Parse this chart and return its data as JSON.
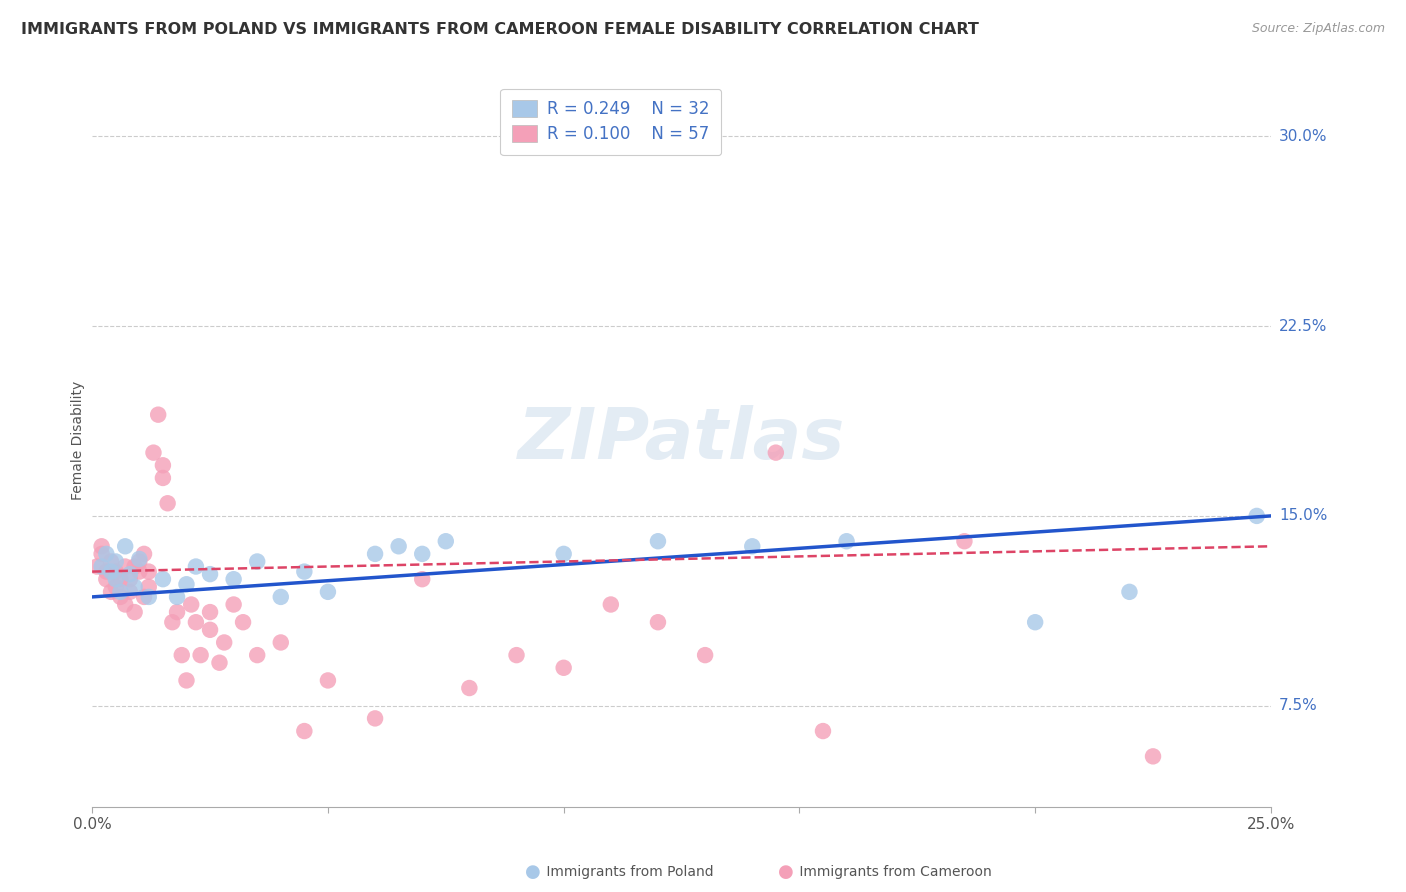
{
  "title": "IMMIGRANTS FROM POLAND VS IMMIGRANTS FROM CAMEROON FEMALE DISABILITY CORRELATION CHART",
  "source": "Source: ZipAtlas.com",
  "ylabel": "Female Disability",
  "xmin": 0.0,
  "xmax": 0.25,
  "ymin": 0.035,
  "ymax": 0.325,
  "poland_R": 0.249,
  "poland_N": 32,
  "cameroon_R": 0.1,
  "cameroon_N": 57,
  "poland_color": "#a8c8e8",
  "cameroon_color": "#f4a0b8",
  "poland_line_color": "#2255cc",
  "cameroon_line_color": "#dd4466",
  "background_color": "#ffffff",
  "grid_color": "#cccccc",
  "watermark": "ZIPatlas",
  "poland_scatter_x": [
    0.002,
    0.003,
    0.004,
    0.005,
    0.005,
    0.006,
    0.007,
    0.008,
    0.009,
    0.01,
    0.012,
    0.015,
    0.018,
    0.02,
    0.022,
    0.025,
    0.03,
    0.035,
    0.04,
    0.045,
    0.05,
    0.06,
    0.065,
    0.07,
    0.075,
    0.1,
    0.12,
    0.14,
    0.16,
    0.2,
    0.22,
    0.247
  ],
  "poland_scatter_y": [
    0.13,
    0.135,
    0.128,
    0.125,
    0.132,
    0.12,
    0.138,
    0.127,
    0.122,
    0.133,
    0.118,
    0.125,
    0.118,
    0.123,
    0.13,
    0.127,
    0.125,
    0.132,
    0.118,
    0.128,
    0.12,
    0.135,
    0.138,
    0.135,
    0.14,
    0.135,
    0.14,
    0.138,
    0.14,
    0.108,
    0.12,
    0.15
  ],
  "cameroon_scatter_x": [
    0.001,
    0.002,
    0.002,
    0.003,
    0.003,
    0.004,
    0.004,
    0.005,
    0.005,
    0.006,
    0.006,
    0.007,
    0.007,
    0.008,
    0.008,
    0.009,
    0.009,
    0.01,
    0.01,
    0.011,
    0.011,
    0.012,
    0.012,
    0.013,
    0.014,
    0.015,
    0.015,
    0.016,
    0.017,
    0.018,
    0.019,
    0.02,
    0.021,
    0.022,
    0.023,
    0.025,
    0.025,
    0.027,
    0.028,
    0.03,
    0.032,
    0.035,
    0.04,
    0.045,
    0.05,
    0.06,
    0.07,
    0.08,
    0.09,
    0.1,
    0.11,
    0.12,
    0.13,
    0.145,
    0.155,
    0.185,
    0.225
  ],
  "cameroon_scatter_y": [
    0.13,
    0.135,
    0.138,
    0.125,
    0.128,
    0.12,
    0.132,
    0.122,
    0.128,
    0.125,
    0.118,
    0.13,
    0.115,
    0.125,
    0.12,
    0.13,
    0.112,
    0.128,
    0.132,
    0.118,
    0.135,
    0.122,
    0.128,
    0.175,
    0.19,
    0.17,
    0.165,
    0.155,
    0.108,
    0.112,
    0.095,
    0.085,
    0.115,
    0.108,
    0.095,
    0.105,
    0.112,
    0.092,
    0.1,
    0.115,
    0.108,
    0.095,
    0.1,
    0.065,
    0.085,
    0.07,
    0.125,
    0.082,
    0.095,
    0.09,
    0.115,
    0.108,
    0.095,
    0.175,
    0.065,
    0.14,
    0.055
  ],
  "title_fontsize": 11.5,
  "legend_fontsize": 12,
  "tick_fontsize": 11
}
